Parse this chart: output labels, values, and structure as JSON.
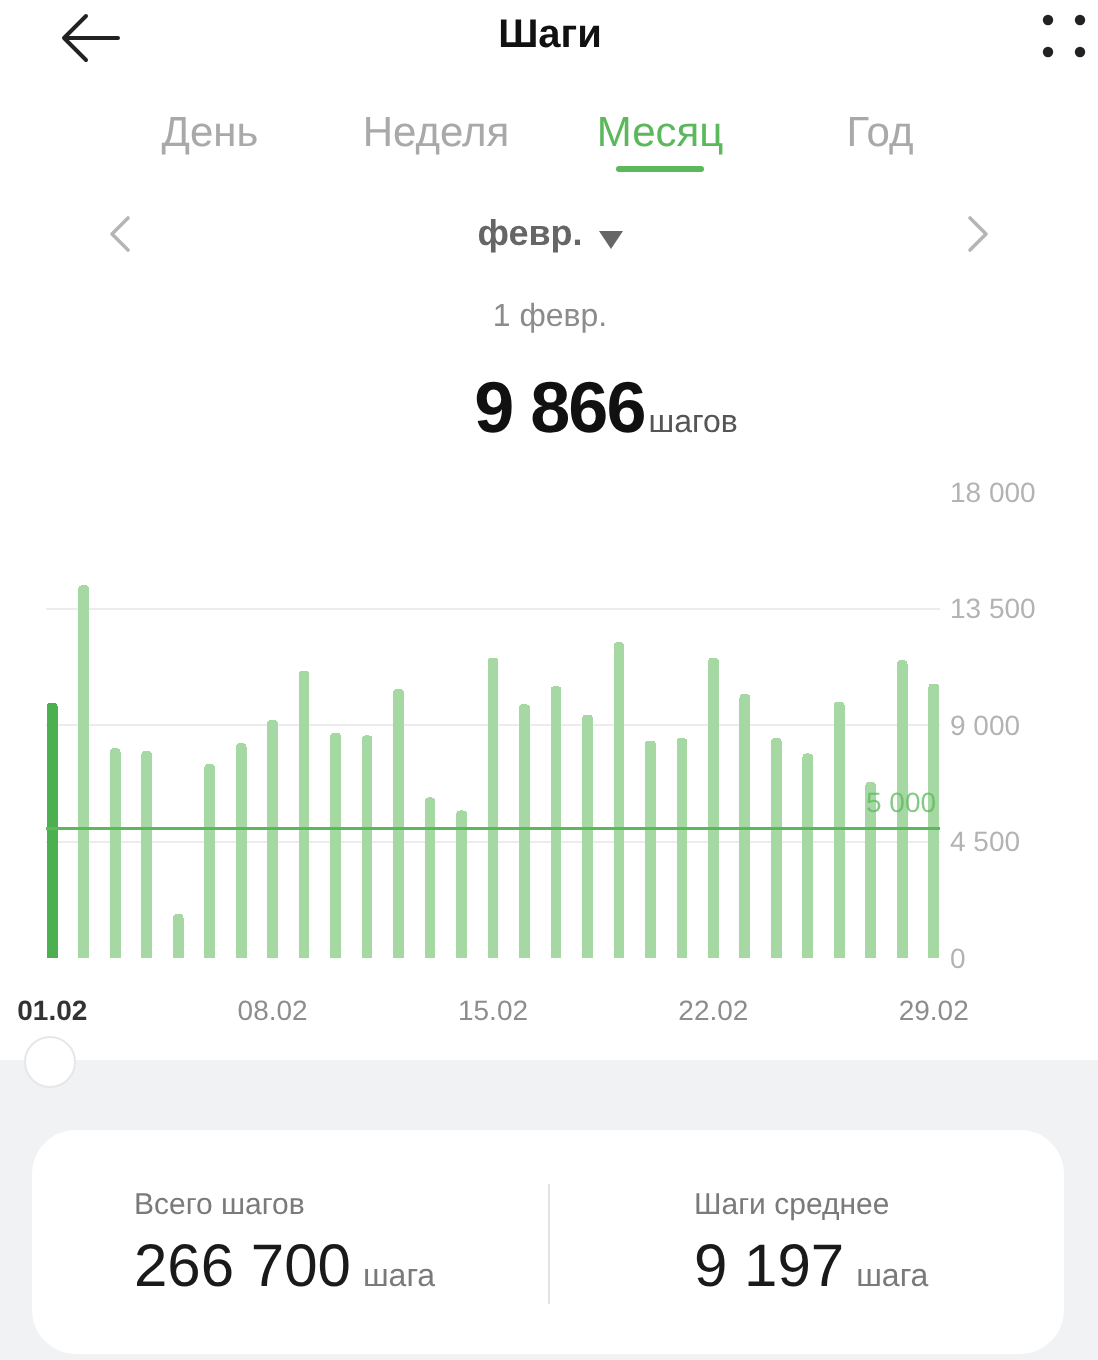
{
  "chart_data": {
    "type": "bar",
    "title": "Шаги",
    "annotations": [
      "День",
      "Неделя",
      "Месяц",
      "Год",
      "февр.",
      "1 февр.",
      "9 866",
      "шагов",
      "Всего шагов",
      "266 700",
      "шага",
      "Шаги среднее",
      "9 197",
      "шага"
    ],
    "categories": [
      "01.02",
      null,
      null,
      null,
      null,
      null,
      null,
      "08.02",
      null,
      null,
      null,
      null,
      null,
      null,
      "15.02",
      null,
      null,
      null,
      null,
      null,
      null,
      "22.02",
      null,
      null,
      null,
      null,
      null,
      null,
      "29.02"
    ],
    "values": [
      9866,
      14400,
      8100,
      8000,
      1700,
      7500,
      8300,
      9200,
      11100,
      8700,
      8600,
      10400,
      6200,
      5700,
      11600,
      9800,
      10500,
      9400,
      12200,
      8400,
      8500,
      11600,
      10200,
      8500,
      7900,
      9900,
      6800,
      11500,
      10600
    ],
    "colors": [
      "#4caf50",
      "#a5d8a2",
      "#a5d8a2",
      "#a5d8a2",
      "#a5d8a2",
      "#a5d8a2",
      "#a5d8a2",
      "#a5d8a2",
      "#a5d8a2",
      "#a5d8a2",
      "#a5d8a2",
      "#a5d8a2",
      "#a5d8a2",
      "#a5d8a2",
      "#a5d8a2",
      "#a5d8a2",
      "#a5d8a2",
      "#a5d8a2",
      "#a5d8a2",
      "#a5d8a2",
      "#a5d8a2",
      "#a5d8a2",
      "#a5d8a2",
      "#a5d8a2",
      "#a5d8a2",
      "#a5d8a2",
      "#a5d8a2",
      "#a5d8a2",
      "#a5d8a2"
    ],
    "ylim": [
      0,
      18000
    ],
    "yticks": [
      0,
      {
        "value": 4500,
        "label": "4 500"
      },
      {
        "value": 9000,
        "label": "9 000"
      },
      {
        "value": 13500,
        "label": "13 500"
      },
      {
        "value": 18000,
        "label": "18 000"
      }
    ],
    "grid": "y",
    "ref_lines": [
      {
        "axis": "y",
        "value": 5000,
        "label": "5 000",
        "color": "#5cb85c"
      }
    ]
  }
}
